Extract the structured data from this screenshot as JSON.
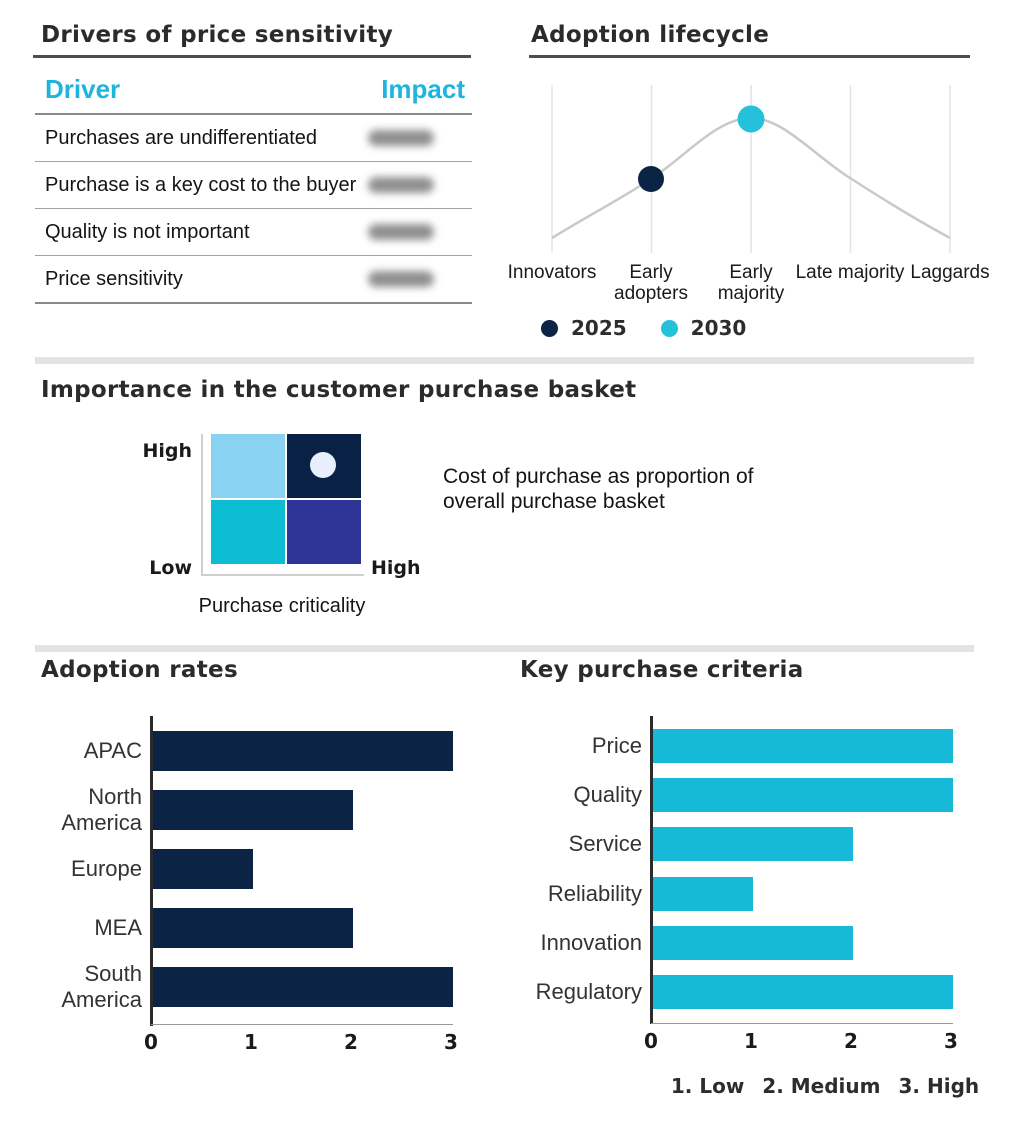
{
  "colors": {
    "navy": "#0b2344",
    "cyan_bar": "#17b9d9",
    "header_cyan": "#1db5dd",
    "lifecycle_2030_dot": "#25c1da",
    "matrix_light_sky": "#8ad2f2",
    "matrix_navy": "#0a2146",
    "matrix_cyan": "#0dbdd3",
    "matrix_indigo": "#2f3596",
    "matrix_marker": "#e6effb",
    "curve_gray": "#c9c9c9",
    "grid_gray": "#e4e4e4",
    "divider_gray": "#e3e3e3"
  },
  "chart_data": [
    {
      "type": "table",
      "title": "Drivers of price sensitivity",
      "columns": [
        "Driver",
        "Impact"
      ],
      "rows": [
        "Purchases are undifferentiated",
        "Purchase is a key cost to the buyer",
        "Quality is not important",
        "Price sensitivity"
      ],
      "impact_values": "blurred/redacted in source"
    },
    {
      "type": "line",
      "title": "Adoption lifecycle",
      "x": [
        "Innovators",
        "Early adopters",
        "Early majority",
        "Late majority",
        "Laggards"
      ],
      "curve": "bell curve, unlabeled y-axis",
      "curve_values": [
        0.15,
        0.55,
        1.0,
        0.55,
        0.15
      ],
      "points": [
        {
          "label": "2025",
          "x": "Early adopters",
          "y": 0.55
        },
        {
          "label": "2030",
          "x": "Early majority",
          "y": 1.0
        }
      ],
      "legend": [
        "2025",
        "2030"
      ],
      "legend_position": "bottom"
    },
    {
      "type": "heatmap",
      "title": "Importance in the customer purchase basket",
      "x_axis": "Purchase criticality",
      "x_range": [
        "Low",
        "High"
      ],
      "y_range": [
        "Low",
        "High"
      ],
      "marker_quadrant": "high-x / high-y",
      "note_lines": [
        "Cost of purchase as proportion of",
        "overall purchase basket"
      ]
    },
    {
      "type": "bar",
      "title": "Adoption rates",
      "orientation": "horizontal",
      "categories": [
        "APAC",
        "North America",
        "Europe",
        "MEA",
        "South America"
      ],
      "values": [
        3,
        2,
        1,
        2,
        3
      ],
      "xlim": [
        0,
        3
      ],
      "xticks": [
        "0",
        "1",
        "2",
        "3"
      ]
    },
    {
      "type": "bar",
      "title": "Key purchase criteria",
      "orientation": "horizontal",
      "categories": [
        "Price",
        "Quality",
        "Service",
        "Reliability",
        "Innovation",
        "Regulatory"
      ],
      "values": [
        3,
        3,
        2,
        1,
        2,
        3
      ],
      "xlim": [
        0,
        3
      ],
      "xticks": [
        "0",
        "1",
        "2",
        "3"
      ],
      "scale_note": [
        "1. Low",
        "2. Medium",
        "3. High"
      ]
    }
  ]
}
